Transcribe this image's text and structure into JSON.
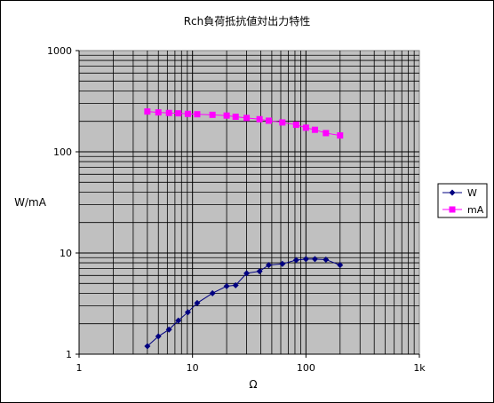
{
  "chart_data": {
    "type": "line",
    "title": "Rch負荷抵抗値対出力特性",
    "xlabel": "Ω",
    "ylabel": "W/mA",
    "x_scale": "log",
    "y_scale": "log",
    "xlim": [
      1,
      1000
    ],
    "ylim": [
      1,
      1000
    ],
    "x_tick_labels": [
      "1",
      "10",
      "100",
      "1k"
    ],
    "y_tick_labels": [
      "1",
      "10",
      "100",
      "1000"
    ],
    "grid": true,
    "legend_position": "right",
    "series": [
      {
        "name": "W",
        "color": "#000080",
        "marker": "diamond",
        "x": [
          4,
          5,
          6.2,
          7.5,
          9.1,
          11,
          15,
          20,
          24,
          30,
          39,
          47,
          62,
          82,
          100,
          120,
          150,
          200
        ],
        "y": [
          1.2,
          1.5,
          1.75,
          2.15,
          2.6,
          3.2,
          4.0,
          4.7,
          4.8,
          6.3,
          6.6,
          7.6,
          7.8,
          8.5,
          8.7,
          8.7,
          8.6,
          7.6
        ]
      },
      {
        "name": "mA",
        "color": "#ff00ff",
        "marker": "square",
        "x": [
          4,
          5,
          6.2,
          7.5,
          9.1,
          11,
          15,
          20,
          24,
          30,
          39,
          47,
          62,
          82,
          100,
          120,
          150,
          200
        ],
        "y": [
          250,
          245,
          242,
          240,
          237,
          235,
          232,
          228,
          222,
          216,
          210,
          203,
          195,
          185,
          173,
          165,
          153,
          145
        ]
      }
    ]
  }
}
